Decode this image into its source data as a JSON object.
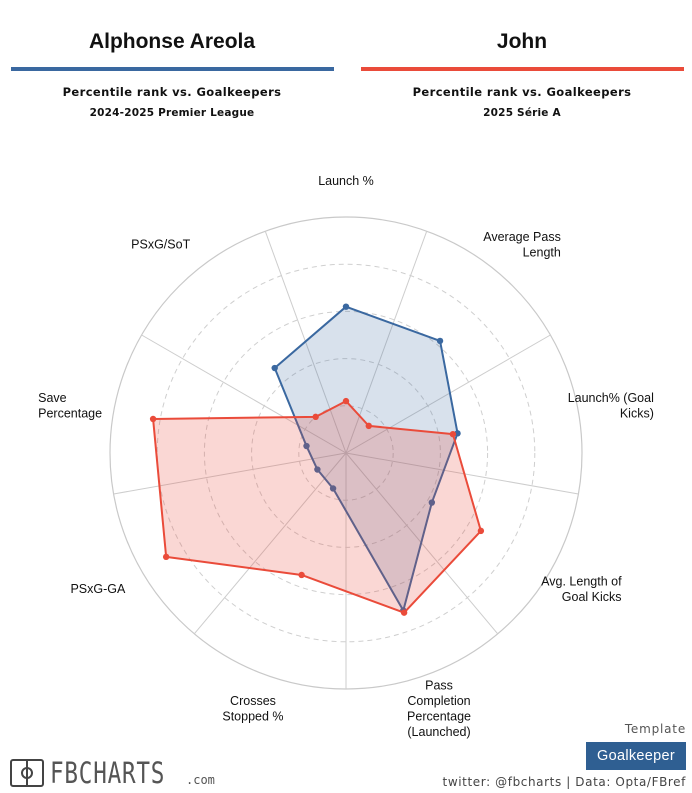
{
  "header": {
    "player1": {
      "name": "Alphonse Areola",
      "subtitle": "Percentile rank vs. Goalkeepers",
      "league": "2024-2025 Premier League",
      "color": "#3a68a0"
    },
    "player2": {
      "name": "John",
      "subtitle": "Percentile rank vs. Goalkeepers",
      "league": "2025 Série A",
      "color": "#ea4b3a"
    }
  },
  "chart_data": {
    "type": "radar",
    "axes": [
      [
        "Launch %"
      ],
      [
        "Average Pass",
        "Length"
      ],
      [
        "Launch% (Goal",
        "Kicks)"
      ],
      [
        "Avg. Length of",
        "Goal Kicks"
      ],
      [
        "Pass",
        "Completion",
        "Percentage",
        "(Launched)"
      ],
      [
        "Crosses",
        "Stopped %"
      ],
      [
        "PSxG-GA"
      ],
      [
        "Save",
        "Percentage"
      ],
      [
        "PSxG/SoT"
      ]
    ],
    "range": [
      0,
      100
    ],
    "grid": true,
    "series": [
      {
        "name": "Alphonse Areola",
        "color": "#3a68a0",
        "values": [
          62,
          62,
          48,
          42,
          71,
          16,
          14,
          17,
          47
        ]
      },
      {
        "name": "John",
        "color": "#ea4b3a",
        "values": [
          22,
          15,
          46,
          66,
          72,
          55,
          88,
          83,
          20
        ]
      }
    ]
  },
  "footer": {
    "template_label": "Template",
    "template_value": "Goalkeeper",
    "logo_text": "FBCHARTS",
    "logo_suffix": ".com",
    "credit": "twitter: @fbcharts | Data: Opta/FBref"
  }
}
